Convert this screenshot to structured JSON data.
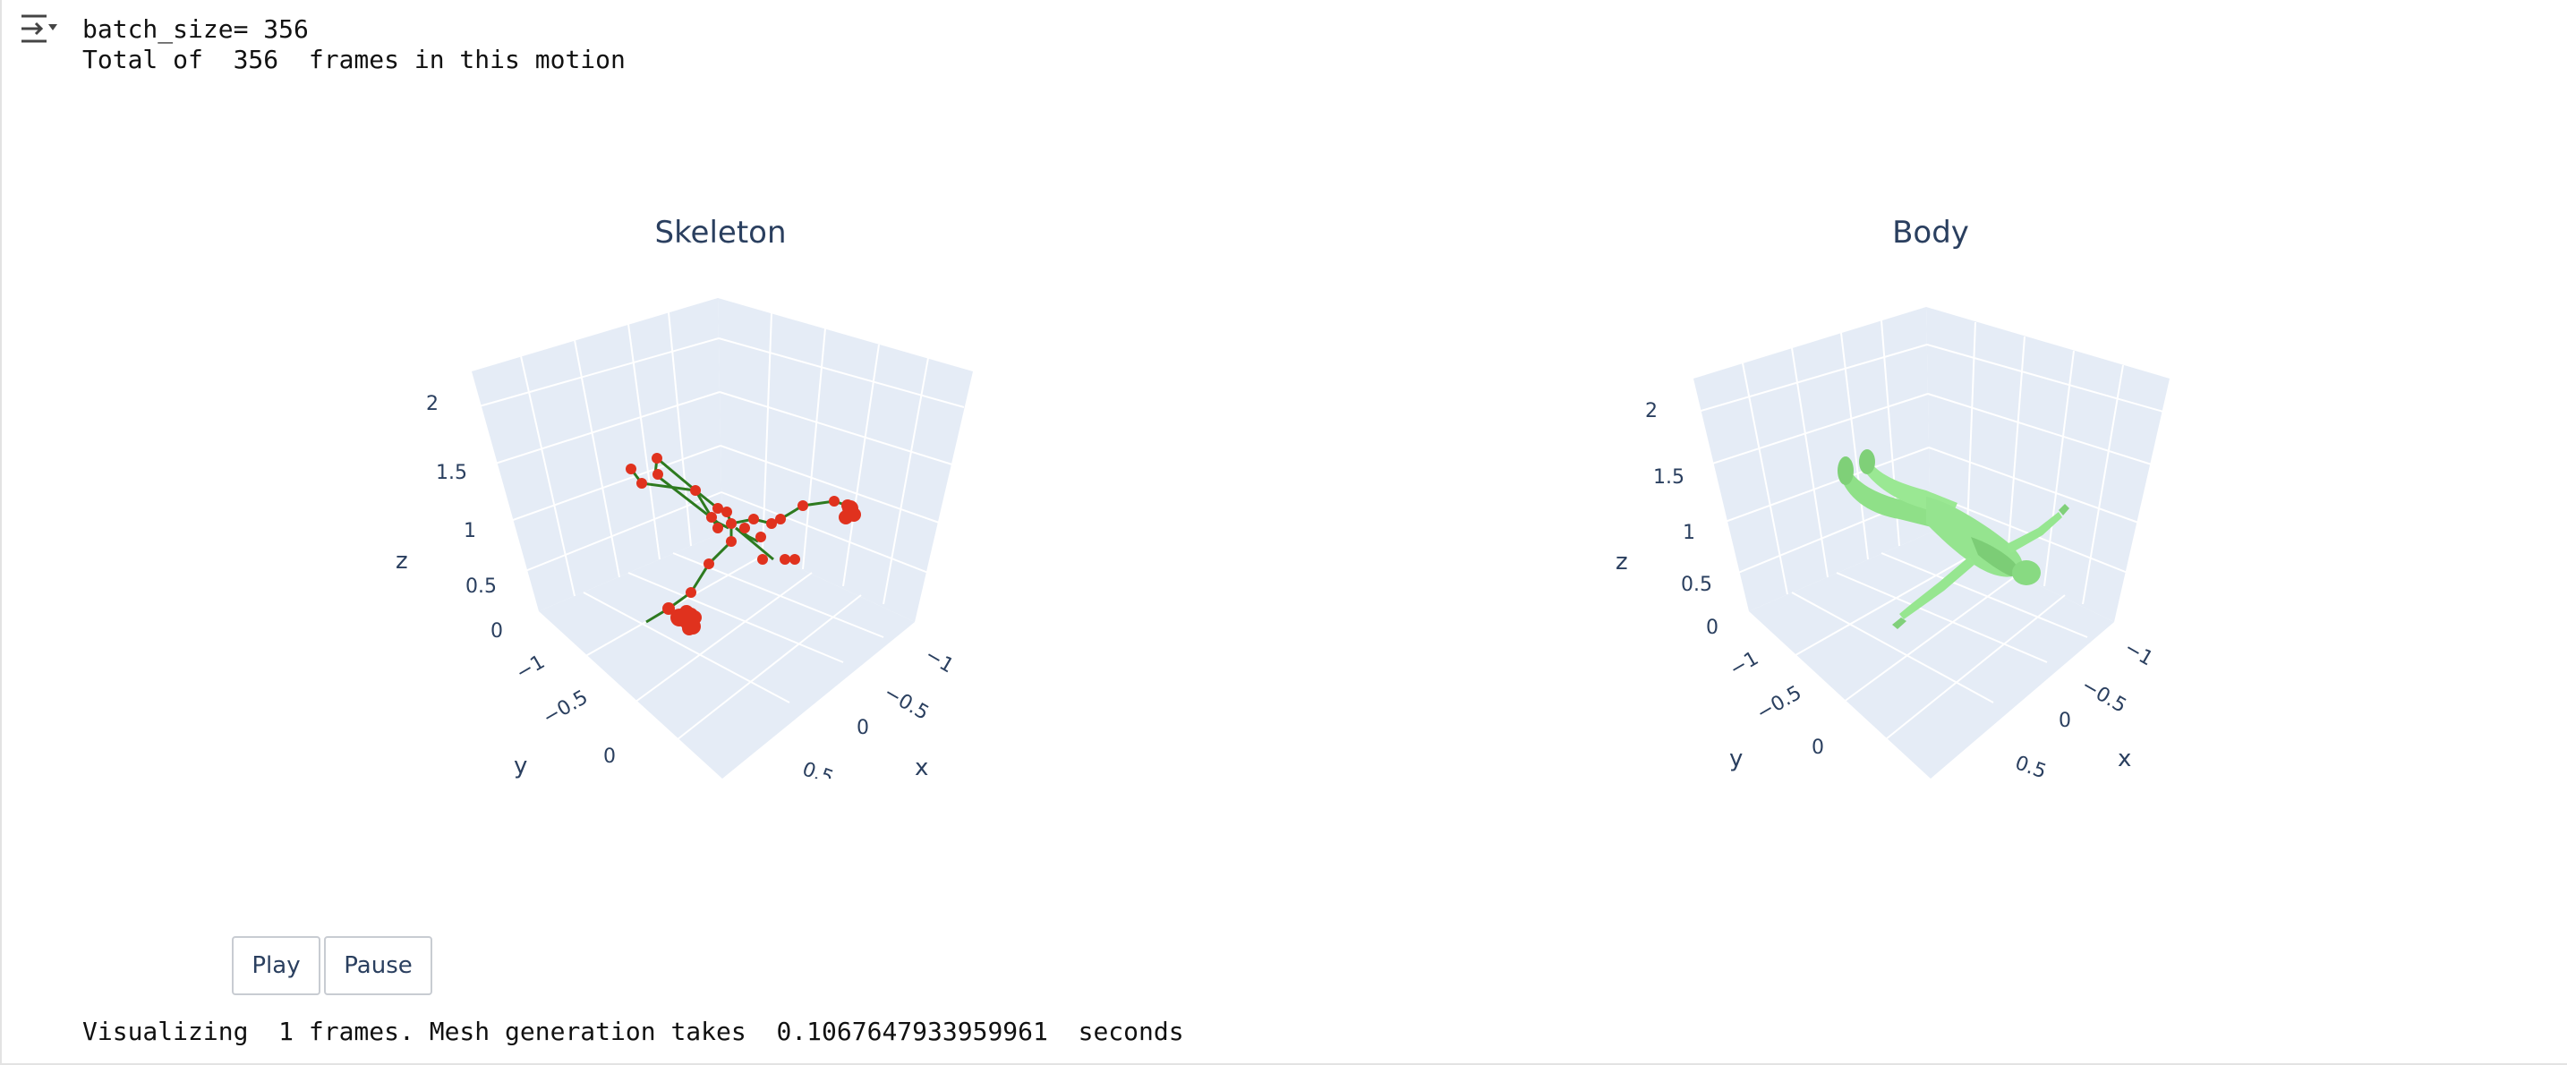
{
  "output": {
    "lines": [
      "batch_size= 356",
      "Total of  356  frames in this motion"
    ],
    "footer": "Visualizing  1 frames. Mesh generation takes  0.1067647933959961  seconds"
  },
  "plots": {
    "left": {
      "title": "Skeleton",
      "z_ticks": [
        "2",
        "1.5",
        "1",
        "0.5",
        "0"
      ],
      "y_ticks": [
        "−1",
        "−0.5",
        "0"
      ],
      "x_ticks": [
        "−1",
        "−0.5",
        "0",
        "0.5"
      ],
      "axis_titles": {
        "x": "x",
        "y": "y",
        "z": "z"
      }
    },
    "right": {
      "title": "Body",
      "z_ticks": [
        "2",
        "1.5",
        "1",
        "0.5",
        "0"
      ],
      "y_ticks": [
        "−1",
        "−0.5",
        "0"
      ],
      "x_ticks": [
        "−1",
        "−0.5",
        "0",
        "0.5"
      ],
      "axis_titles": {
        "x": "x",
        "y": "y",
        "z": "z"
      }
    }
  },
  "controls": {
    "play_label": "Play",
    "pause_label": "Pause"
  },
  "colors": {
    "scene_bg": "#e5ecf6",
    "grid": "#ffffff",
    "joint": "#e0321e",
    "bone": "#2d7a1f",
    "mesh": "#90e48a",
    "mesh_shade": "#6fc46a"
  }
}
